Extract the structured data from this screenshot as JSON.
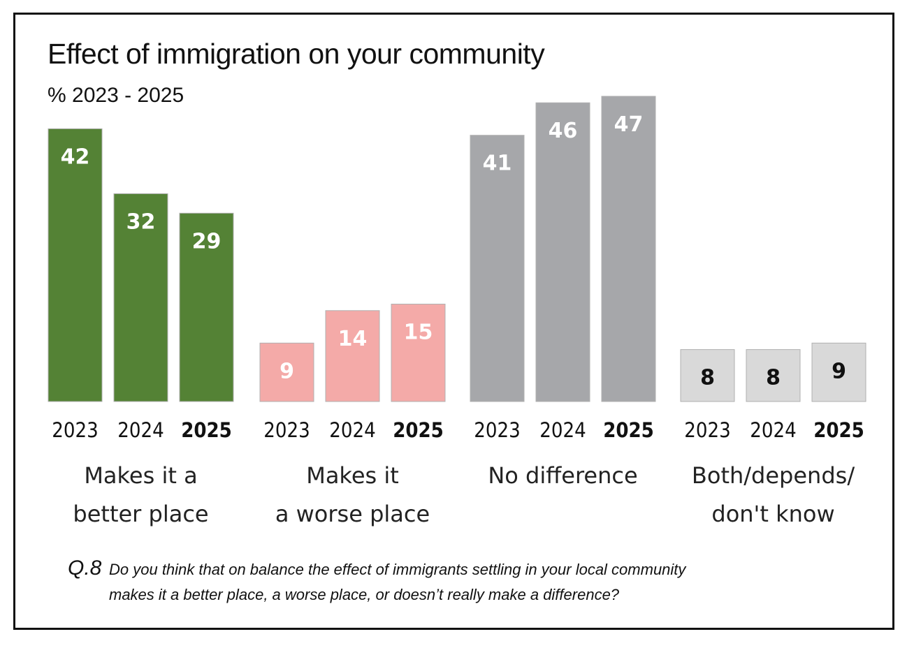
{
  "chart_data": {
    "type": "bar",
    "title": "Effect of immigration on your community",
    "subtitle": "%  2023 - 2025",
    "unit": "%",
    "ylim": [
      0,
      50
    ],
    "groups": [
      {
        "label_lines": [
          "Makes it a",
          "better place"
        ],
        "color": "#548235",
        "label_color": "#ffffff",
        "bars": [
          {
            "year": "2023",
            "value": 42
          },
          {
            "year": "2024",
            "value": 32
          },
          {
            "year": "2025",
            "value": 29
          }
        ]
      },
      {
        "label_lines": [
          "Makes it",
          "a worse place"
        ],
        "color": "#f4aaa8",
        "label_color": "#ffffff",
        "bars": [
          {
            "year": "2023",
            "value": 9
          },
          {
            "year": "2024",
            "value": 14
          },
          {
            "year": "2025",
            "value": 15
          }
        ]
      },
      {
        "label_lines": [
          "No difference"
        ],
        "color": "#a6a7aa",
        "label_color": "#ffffff",
        "bars": [
          {
            "year": "2023",
            "value": 41
          },
          {
            "year": "2024",
            "value": 46
          },
          {
            "year": "2025",
            "value": 47
          }
        ]
      },
      {
        "label_lines": [
          "Both/depends/",
          "don't know"
        ],
        "color": "#d9d9d9",
        "label_color": "#111111",
        "bars": [
          {
            "year": "2023",
            "value": 8
          },
          {
            "year": "2024",
            "value": 8
          },
          {
            "year": "2025",
            "value": 9
          }
        ]
      }
    ],
    "bold_year": "2025"
  },
  "footnote": {
    "question_no": "Q.8",
    "line1": "Do you think that on balance the effect of immigrants settling in your local community",
    "line2": "makes it a better place, a worse place, or doesn’t really make a difference?"
  }
}
